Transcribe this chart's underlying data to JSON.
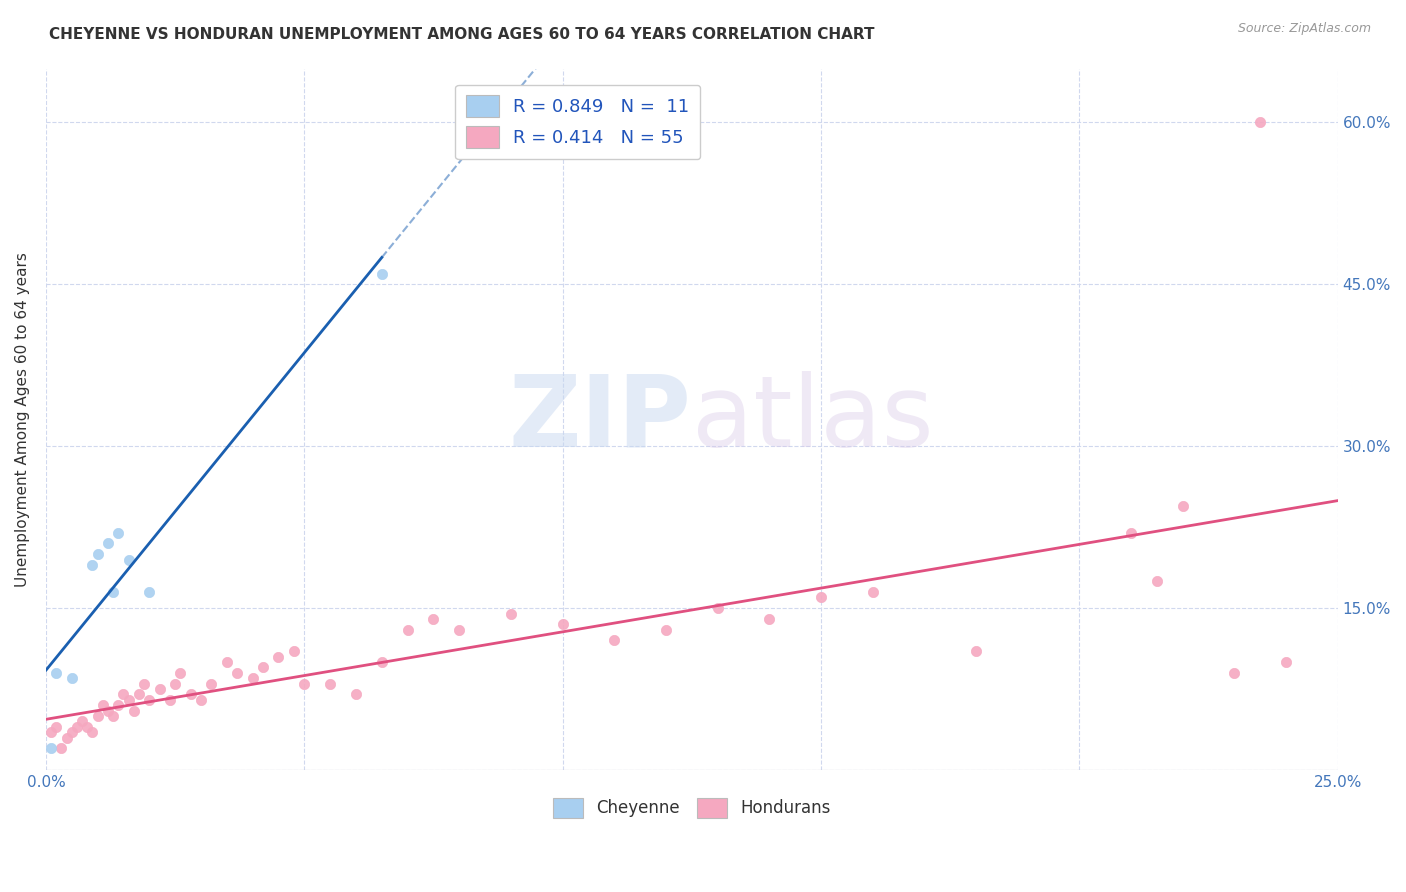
{
  "title": "CHEYENNE VS HONDURAN UNEMPLOYMENT AMONG AGES 60 TO 64 YEARS CORRELATION CHART",
  "source": "Source: ZipAtlas.com",
  "ylabel": "Unemployment Among Ages 60 to 64 years",
  "xlim": [
    0.0,
    0.25
  ],
  "ylim": [
    0.0,
    0.65
  ],
  "xticks": [
    0.0,
    0.05,
    0.1,
    0.15,
    0.2,
    0.25
  ],
  "yticks": [
    0.0,
    0.15,
    0.3,
    0.45,
    0.6
  ],
  "cheyenne_color": "#a8cff0",
  "honduran_color": "#f5a8c0",
  "cheyenne_line_color": "#1a5fb0",
  "honduran_line_color": "#e05080",
  "legend_R_cheyenne": "0.849",
  "legend_N_cheyenne": "11",
  "legend_R_honduran": "0.414",
  "legend_N_honduran": "55",
  "cheyenne_x": [
    0.001,
    0.002,
    0.005,
    0.009,
    0.01,
    0.012,
    0.013,
    0.014,
    0.016,
    0.02,
    0.065
  ],
  "cheyenne_y": [
    0.02,
    0.09,
    0.085,
    0.19,
    0.2,
    0.21,
    0.165,
    0.22,
    0.195,
    0.165,
    0.46
  ],
  "honduran_x": [
    0.001,
    0.002,
    0.003,
    0.004,
    0.005,
    0.006,
    0.007,
    0.008,
    0.009,
    0.01,
    0.011,
    0.012,
    0.013,
    0.014,
    0.015,
    0.016,
    0.017,
    0.018,
    0.019,
    0.02,
    0.022,
    0.024,
    0.025,
    0.026,
    0.028,
    0.03,
    0.032,
    0.035,
    0.037,
    0.04,
    0.042,
    0.045,
    0.048,
    0.05,
    0.055,
    0.06,
    0.065,
    0.07,
    0.075,
    0.08,
    0.09,
    0.1,
    0.11,
    0.12,
    0.13,
    0.14,
    0.15,
    0.16,
    0.18,
    0.21,
    0.215,
    0.22,
    0.23,
    0.235,
    0.24
  ],
  "honduran_y": [
    0.035,
    0.04,
    0.02,
    0.03,
    0.035,
    0.04,
    0.045,
    0.04,
    0.035,
    0.05,
    0.06,
    0.055,
    0.05,
    0.06,
    0.07,
    0.065,
    0.055,
    0.07,
    0.08,
    0.065,
    0.075,
    0.065,
    0.08,
    0.09,
    0.07,
    0.065,
    0.08,
    0.1,
    0.09,
    0.085,
    0.095,
    0.105,
    0.11,
    0.08,
    0.08,
    0.07,
    0.1,
    0.13,
    0.14,
    0.13,
    0.145,
    0.135,
    0.12,
    0.13,
    0.15,
    0.14,
    0.16,
    0.165,
    0.11,
    0.22,
    0.175,
    0.245,
    0.09,
    0.6,
    0.1
  ],
  "background_color": "#ffffff",
  "grid_color": "#d0d8ee",
  "watermark_zip": "ZIP",
  "watermark_atlas": "atlas",
  "marker_size": 55,
  "cheyenne_label": "Cheyenne",
  "honduran_label": "Hondurans"
}
